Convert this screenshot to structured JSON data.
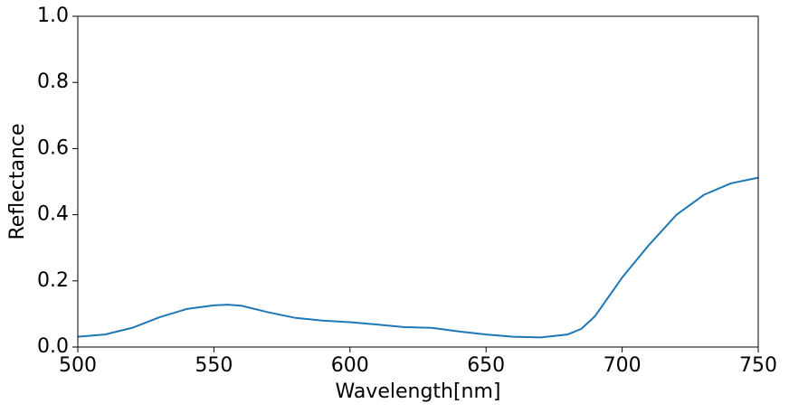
{
  "chart_data": {
    "type": "line",
    "xlabel": "Wavelength[nm]",
    "ylabel": "Reflectance",
    "x": [
      500,
      510,
      520,
      530,
      540,
      550,
      555,
      560,
      570,
      580,
      590,
      600,
      610,
      620,
      630,
      640,
      650,
      660,
      670,
      680,
      685,
      690,
      700,
      710,
      720,
      730,
      740,
      750
    ],
    "series": [
      {
        "color": "#1f77b4",
        "values": [
          0.031,
          0.038,
          0.058,
          0.09,
          0.115,
          0.126,
          0.128,
          0.125,
          0.105,
          0.088,
          0.08,
          0.075,
          0.068,
          0.06,
          0.058,
          0.047,
          0.038,
          0.031,
          0.029,
          0.038,
          0.055,
          0.093,
          0.21,
          0.31,
          0.4,
          0.46,
          0.495,
          0.512
        ]
      }
    ],
    "xlim": [
      500,
      750
    ],
    "xticks": [
      500,
      550,
      600,
      650,
      700,
      750
    ],
    "ylim": [
      0,
      1
    ],
    "yticks": [
      {
        "value": 0,
        "label": "0.0"
      },
      0.2,
      0.4,
      0.6,
      0.8,
      {
        "value": 1,
        "label": "1.0"
      }
    ],
    "grid": false
  }
}
